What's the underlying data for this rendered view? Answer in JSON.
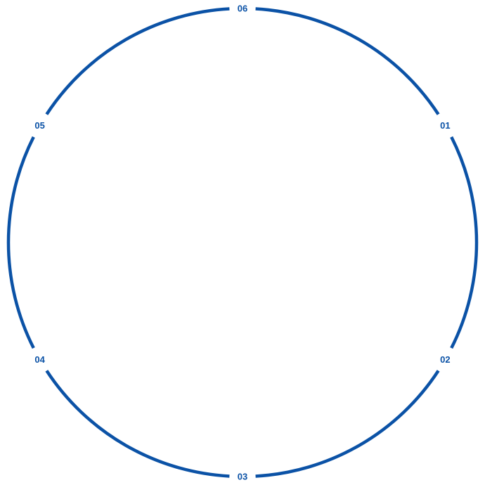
{
  "diagram": {
    "stroke_color": "#0b52a6",
    "label_color": "#0b52a6",
    "labels": [
      {
        "text": "01",
        "angle_deg": -30
      },
      {
        "text": "02",
        "angle_deg": 30
      },
      {
        "text": "03",
        "angle_deg": 90
      },
      {
        "text": "04",
        "angle_deg": 150
      },
      {
        "text": "05",
        "angle_deg": 210
      },
      {
        "text": "06",
        "angle_deg": 270
      }
    ]
  }
}
